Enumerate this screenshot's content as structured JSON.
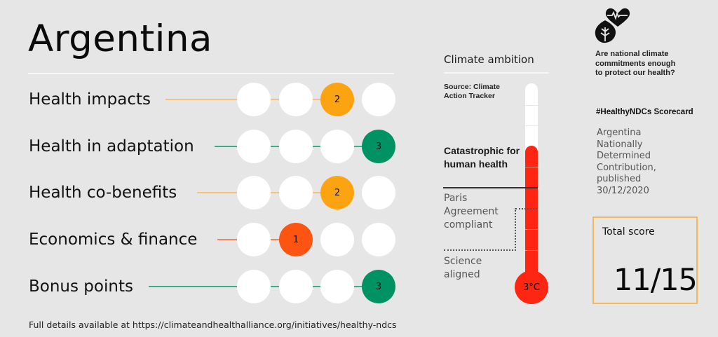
{
  "header": {
    "country": "Argentina"
  },
  "scorecard": {
    "rows": [
      {
        "label": "Health impacts",
        "score": "2",
        "position": 3,
        "color": "#fca311",
        "line_color": "#f5c27a",
        "line_start": 236
      },
      {
        "label": "Health in adaptation",
        "score": "3",
        "position": 4,
        "color": "#009263",
        "line_color": "#3aaf86",
        "line_start": 306
      },
      {
        "label": "Health co-benefits",
        "score": "2",
        "position": 3,
        "color": "#fca311",
        "line_color": "#f5c27a",
        "line_start": 281
      },
      {
        "label": "Economics & finance",
        "score": "1",
        "position": 2,
        "color": "#fd5412",
        "line_color": "#f2845c",
        "line_start": 310
      },
      {
        "label": "Bonus points",
        "score": "3",
        "position": 4,
        "color": "#009263",
        "line_color": "#3aaf86",
        "line_start": 212
      }
    ]
  },
  "footnote": "Full details available at https://climateandhealthalliance.org/initiatives/healthy-ndcs",
  "climate_ambition": {
    "title": "Climate ambition",
    "source": "Source: Climate Action Tracker",
    "rating": "Catastrophic for human health",
    "level_paris": "Paris Agreement compliant",
    "level_science": "Science aligned",
    "temperature": "3°C",
    "thermometer_color": "#fe2512"
  },
  "sidebar": {
    "logo_icon": "heart-leaf-icon",
    "question": "Are national climate commitments enough to protect our health?",
    "hashtag": "#HealthyNDCs Scorecard",
    "ndc_description": "Argentina Nationally Determined Contribution, published 30/12/2020",
    "total_score_label": "Total score",
    "total_score_value": "11/15",
    "border_color": "#f5b95a"
  }
}
